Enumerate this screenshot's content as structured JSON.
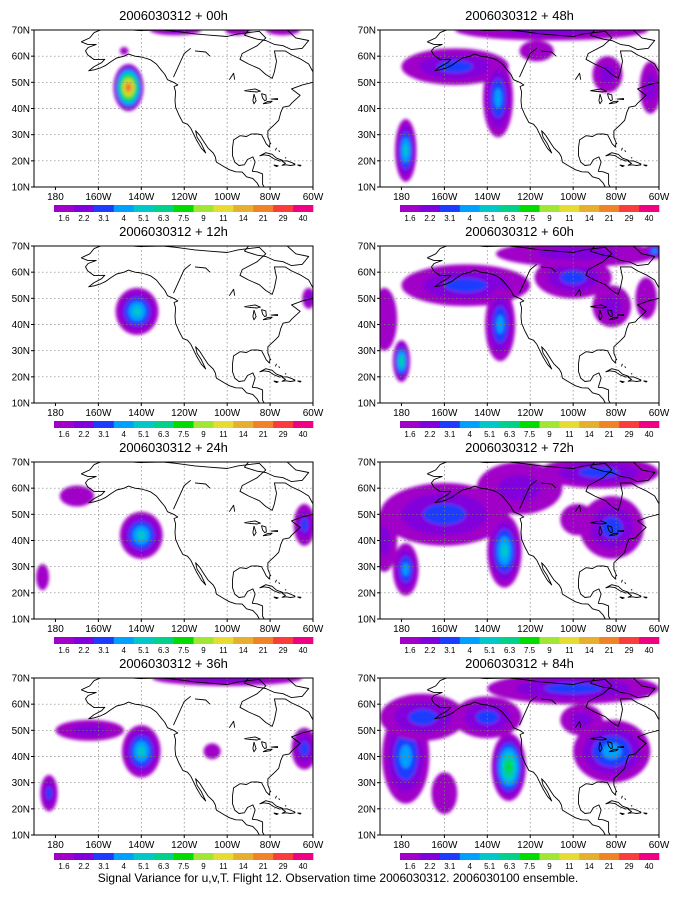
{
  "caption": "Signal Variance for u,v,T. Flight 12. Observation time 2006030312. 2006030100 ensemble.",
  "colorbar": {
    "labels": [
      "1.6",
      "2.2",
      "3.1",
      "4",
      "5.1",
      "6.3",
      "7.5",
      "9",
      "11",
      "14",
      "21",
      "29",
      "40"
    ],
    "colors": [
      "#a000c8",
      "#8200dc",
      "#1e3cff",
      "#00a0ff",
      "#00c8c8",
      "#00d28c",
      "#00dc00",
      "#a0e632",
      "#e6dc32",
      "#e6af2d",
      "#f08228",
      "#fa3c3c",
      "#f00082"
    ]
  },
  "map_axes": {
    "lon_labels": [
      "180",
      "160W",
      "140W",
      "120W",
      "100W",
      "80W",
      "60W"
    ],
    "lat_labels": [
      "10N",
      "20N",
      "30N",
      "40N",
      "50N",
      "60N",
      "70N"
    ]
  },
  "panels": [
    {
      "title": "2006030312 + 00h"
    },
    {
      "title": "2006030312 + 48h"
    },
    {
      "title": "2006030312 + 12h"
    },
    {
      "title": "2006030312 + 60h"
    },
    {
      "title": "2006030312 + 24h"
    },
    {
      "title": "2006030312 + 72h"
    },
    {
      "title": "2006030312 + 36h"
    },
    {
      "title": "2006030312 + 84h"
    }
  ],
  "chart_data": {
    "type": "heatmap",
    "levels": [
      1.6,
      2.2,
      3.1,
      4,
      5.1,
      6.3,
      7.5,
      9,
      11,
      14,
      21,
      29,
      40
    ],
    "lon_range": [
      -190,
      -60
    ],
    "lat_range": [
      10,
      70
    ],
    "fields": [
      {
        "lead": "00h",
        "blobs": [
          {
            "lon": -146,
            "lat": 48,
            "rx": 7,
            "ry": 9,
            "levels": 12
          },
          {
            "lon": -148,
            "lat": 62,
            "rx": 2,
            "ry": 1.5,
            "levels": 1
          },
          {
            "lon": -124,
            "lat": 70,
            "rx": 12,
            "ry": 2,
            "levels": 2
          },
          {
            "lon": -95,
            "lat": 70,
            "rx": 6,
            "ry": 2,
            "levels": 1
          },
          {
            "lon": -74,
            "lat": 70,
            "rx": 8,
            "ry": 2,
            "levels": 1
          }
        ]
      },
      {
        "lead": "48h",
        "blobs": [
          {
            "lon": -178,
            "lat": 24,
            "rx": 5,
            "ry": 12,
            "levels": 5
          },
          {
            "lon": -155,
            "lat": 56,
            "rx": 25,
            "ry": 7,
            "levels": 3
          },
          {
            "lon": -135,
            "lat": 44,
            "rx": 7,
            "ry": 15,
            "levels": 4
          },
          {
            "lon": -117,
            "lat": 62,
            "rx": 8,
            "ry": 4,
            "levels": 1
          },
          {
            "lon": -110,
            "lat": 70,
            "rx": 45,
            "ry": 4,
            "levels": 2
          },
          {
            "lon": -84,
            "lat": 53,
            "rx": 7,
            "ry": 7,
            "levels": 2
          },
          {
            "lon": -64,
            "lat": 48,
            "rx": 5,
            "ry": 10,
            "levels": 2
          }
        ]
      },
      {
        "lead": "12h",
        "blobs": [
          {
            "lon": -142,
            "lat": 45,
            "rx": 10,
            "ry": 9,
            "levels": 5
          },
          {
            "lon": -62,
            "lat": 50,
            "rx": 3,
            "ry": 4,
            "levels": 2
          }
        ]
      },
      {
        "lead": "60h",
        "blobs": [
          {
            "lon": -180,
            "lat": 26,
            "rx": 4,
            "ry": 8,
            "levels": 6
          },
          {
            "lon": -188,
            "lat": 42,
            "rx": 6,
            "ry": 12,
            "levels": 1
          },
          {
            "lon": -150,
            "lat": 55,
            "rx": 30,
            "ry": 8,
            "levels": 3
          },
          {
            "lon": -134,
            "lat": 40,
            "rx": 7,
            "ry": 14,
            "levels": 4
          },
          {
            "lon": -100,
            "lat": 58,
            "rx": 18,
            "ry": 8,
            "levels": 3
          },
          {
            "lon": -98,
            "lat": 67,
            "rx": 38,
            "ry": 5,
            "levels": 2
          },
          {
            "lon": -82,
            "lat": 47,
            "rx": 9,
            "ry": 8,
            "levels": 2
          },
          {
            "lon": -62,
            "lat": 68,
            "rx": 5,
            "ry": 3,
            "levels": 4
          },
          {
            "lon": -66,
            "lat": 50,
            "rx": 5,
            "ry": 8,
            "levels": 1
          }
        ]
      },
      {
        "lead": "24h",
        "blobs": [
          {
            "lon": -140,
            "lat": 42,
            "rx": 10,
            "ry": 9,
            "levels": 5
          },
          {
            "lon": -170,
            "lat": 57,
            "rx": 8,
            "ry": 4,
            "levels": 1
          },
          {
            "lon": -186,
            "lat": 26,
            "rx": 3,
            "ry": 5,
            "levels": 1
          },
          {
            "lon": -64,
            "lat": 46,
            "rx": 5,
            "ry": 8,
            "levels": 3
          }
        ]
      },
      {
        "lead": "72h",
        "blobs": [
          {
            "lon": -178,
            "lat": 29,
            "rx": 6,
            "ry": 10,
            "levels": 4
          },
          {
            "lon": -188,
            "lat": 40,
            "rx": 6,
            "ry": 12,
            "levels": 2
          },
          {
            "lon": -160,
            "lat": 50,
            "rx": 30,
            "ry": 12,
            "levels": 3
          },
          {
            "lon": -132,
            "lat": 36,
            "rx": 8,
            "ry": 14,
            "levels": 5
          },
          {
            "lon": -125,
            "lat": 60,
            "rx": 20,
            "ry": 10,
            "levels": 2
          },
          {
            "lon": -88,
            "lat": 66,
            "rx": 28,
            "ry": 6,
            "levels": 3
          },
          {
            "lon": -82,
            "lat": 45,
            "rx": 15,
            "ry": 12,
            "levels": 3
          },
          {
            "lon": -98,
            "lat": 48,
            "rx": 8,
            "ry": 6,
            "levels": 1
          }
        ]
      },
      {
        "lead": "36h",
        "blobs": [
          {
            "lon": -140,
            "lat": 42,
            "rx": 9,
            "ry": 10,
            "levels": 5
          },
          {
            "lon": -164,
            "lat": 50,
            "rx": 16,
            "ry": 4,
            "levels": 2
          },
          {
            "lon": -183,
            "lat": 26,
            "rx": 4,
            "ry": 7,
            "levels": 3
          },
          {
            "lon": -107,
            "lat": 42,
            "rx": 4,
            "ry": 3,
            "levels": 1
          },
          {
            "lon": -100,
            "lat": 70,
            "rx": 35,
            "ry": 3,
            "levels": 2
          },
          {
            "lon": -64,
            "lat": 43,
            "rx": 6,
            "ry": 8,
            "levels": 3
          }
        ]
      },
      {
        "lead": "84h",
        "blobs": [
          {
            "lon": -178,
            "lat": 40,
            "rx": 11,
            "ry": 18,
            "levels": 4
          },
          {
            "lon": -170,
            "lat": 55,
            "rx": 20,
            "ry": 9,
            "levels": 3
          },
          {
            "lon": -130,
            "lat": 36,
            "rx": 8,
            "ry": 13,
            "levels": 7
          },
          {
            "lon": -140,
            "lat": 55,
            "rx": 16,
            "ry": 8,
            "levels": 3
          },
          {
            "lon": -100,
            "lat": 66,
            "rx": 40,
            "ry": 6,
            "levels": 3
          },
          {
            "lon": -82,
            "lat": 42,
            "rx": 18,
            "ry": 12,
            "levels": 4
          },
          {
            "lon": -96,
            "lat": 54,
            "rx": 10,
            "ry": 6,
            "levels": 2
          },
          {
            "lon": -160,
            "lat": 26,
            "rx": 6,
            "ry": 8,
            "levels": 1
          }
        ]
      }
    ]
  }
}
